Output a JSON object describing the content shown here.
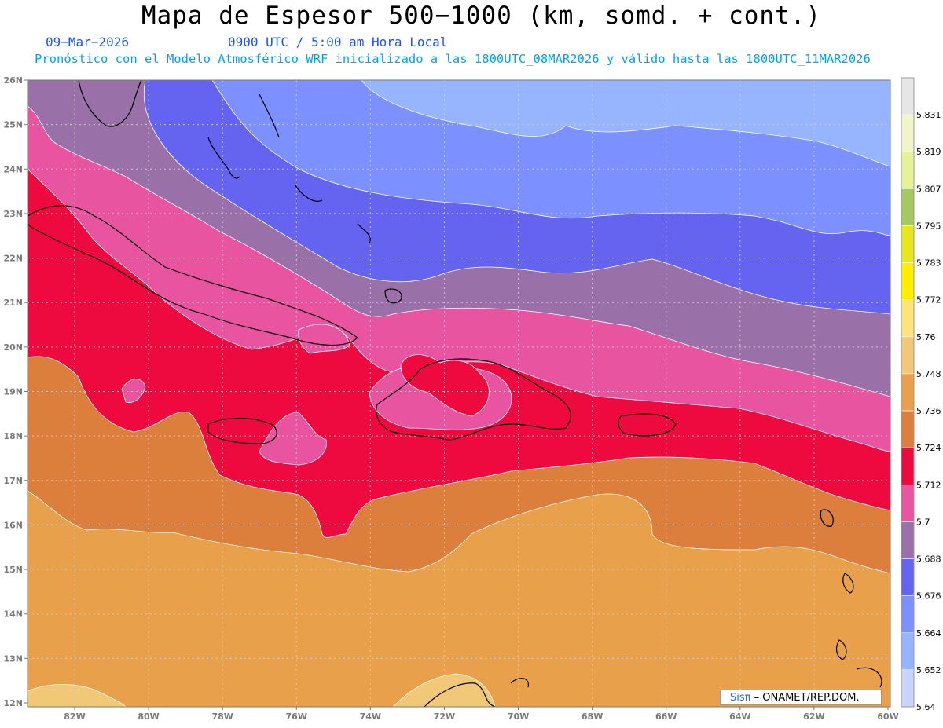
{
  "header": {
    "title": "Mapa de Espesor 500−1000 (km, somd. + cont.)",
    "date": "09−Mar−2026",
    "time": "0900 UTC / 5:00 am Hora Local",
    "subtitle": "Pronóstico con el Modelo Atmosférico WRF inicializado a las 1800UTC_08MAR2026 y válido hasta las  1800UTC_11MAR2026"
  },
  "axes": {
    "lat_labels": [
      "26N",
      "25N",
      "24N",
      "23N",
      "22N",
      "21N",
      "20N",
      "19N",
      "18N",
      "17N",
      "16N",
      "15N",
      "14N",
      "13N",
      "12N"
    ],
    "lon_labels": [
      "82W",
      "80W",
      "78W",
      "76W",
      "74W",
      "72W",
      "70W",
      "68W",
      "66W",
      "64W",
      "62W",
      "60W"
    ]
  },
  "legend": {
    "labels": [
      "5.831",
      "5.819",
      "5.807",
      "5.795",
      "5.783",
      "5.772",
      "5.76",
      "5.748",
      "5.736",
      "5.724",
      "5.712",
      "5.7",
      "5.688",
      "5.676",
      "5.664",
      "5.652",
      "5.64"
    ],
    "colors": [
      "#e6e6e6",
      "#f2f5c8",
      "#e6f29a",
      "#a6c860",
      "#e6e61e",
      "#ffee00",
      "#ffe47a",
      "#f0c878",
      "#e8a04a",
      "#dc7e3c",
      "#ee0a3e",
      "#e854a0",
      "#9a70a8",
      "#6464f0",
      "#7c90ff",
      "#96b4ff",
      "#c8d4ff"
    ]
  },
  "regions": {
    "colors": {
      "lightblue": "#96b4ff",
      "periwinkle": "#7c90ff",
      "blue": "#6464f0",
      "purple": "#9a70a8",
      "pink": "#e854a0",
      "red": "#ee0a3e",
      "orange_dark": "#dc7e3c",
      "orange": "#e8a04a",
      "light_orange": "#f0c878"
    }
  },
  "credit": {
    "sis": "Sisπ",
    "text": "– ONAMET/REP.DOM."
  }
}
